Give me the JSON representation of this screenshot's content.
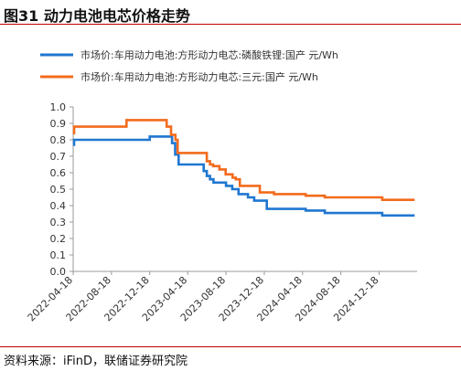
{
  "header": {
    "title": "图31 动力电池电芯价格走势"
  },
  "footer": {
    "source": "资料来源：iFinD，联储证券研究院"
  },
  "colors": {
    "series_blue": "#1f77d0",
    "series_orange": "#f26b1d",
    "accent_rule": "#c00000"
  },
  "chart_data": {
    "type": "line",
    "title": "",
    "xlabel": "",
    "ylabel": "",
    "ylim": [
      0.0,
      1.0
    ],
    "yticks": [
      "0.0",
      "0.1",
      "0.2",
      "0.3",
      "0.4",
      "0.5",
      "0.6",
      "0.7",
      "0.8",
      "0.9",
      "1.0"
    ],
    "xlim": [
      "2022-04-18",
      "2025-04-18"
    ],
    "xticks": [
      "2022-04-18",
      "2022-08-18",
      "2022-12-18",
      "2023-04-18",
      "2023-08-18",
      "2023-12-18",
      "2024-04-18",
      "2024-08-18",
      "2024-12-18"
    ],
    "legend_position": "top",
    "grid": false,
    "series": [
      {
        "name": "市场价:车用动力电池:方形动力电芯:磷酸铁锂:国产  元/Wh",
        "color": "#1f77d0",
        "x": [
          "2022-04-18",
          "2022-04-21",
          "2022-09-08",
          "2022-12-18",
          "2023-02-16",
          "2023-02-27",
          "2023-03-09",
          "2023-03-20",
          "2023-05-29",
          "2023-06-08",
          "2023-06-18",
          "2023-06-28",
          "2023-07-09",
          "2023-07-29",
          "2023-08-18",
          "2023-09-07",
          "2023-09-27",
          "2023-10-07",
          "2023-10-27",
          "2023-11-16",
          "2023-12-26",
          "2024-04-18",
          "2024-04-28",
          "2024-06-18",
          "2024-06-28",
          "2024-12-18",
          "2024-12-28",
          "2025-04-10"
        ],
        "y": [
          0.77,
          0.8,
          0.8,
          0.82,
          0.82,
          0.78,
          0.71,
          0.65,
          0.65,
          0.61,
          0.58,
          0.56,
          0.54,
          0.54,
          0.52,
          0.5,
          0.47,
          0.47,
          0.45,
          0.43,
          0.38,
          0.38,
          0.37,
          0.37,
          0.355,
          0.355,
          0.34,
          0.34
        ]
      },
      {
        "name": "市场价:车用动力电池:方形动力电芯:三元:国产  元/Wh",
        "color": "#f26b1d",
        "x": [
          "2022-04-18",
          "2022-04-21",
          "2022-09-18",
          "2022-10-05",
          "2023-01-26",
          "2023-02-10",
          "2023-02-24",
          "2023-03-10",
          "2023-03-17",
          "2023-06-08",
          "2023-06-18",
          "2023-06-28",
          "2023-07-08",
          "2023-07-28",
          "2023-08-07",
          "2023-08-17",
          "2023-09-08",
          "2023-09-18",
          "2023-10-01",
          "2023-11-06",
          "2023-12-04",
          "2024-01-18",
          "2024-04-08",
          "2024-04-28",
          "2024-06-18",
          "2024-06-28",
          "2024-12-18",
          "2024-12-28",
          "2025-04-10"
        ],
        "y": [
          0.84,
          0.88,
          0.88,
          0.92,
          0.92,
          0.88,
          0.83,
          0.8,
          0.72,
          0.72,
          0.67,
          0.65,
          0.64,
          0.62,
          0.62,
          0.59,
          0.57,
          0.56,
          0.52,
          0.52,
          0.48,
          0.47,
          0.47,
          0.46,
          0.46,
          0.45,
          0.45,
          0.435,
          0.435
        ]
      }
    ]
  }
}
